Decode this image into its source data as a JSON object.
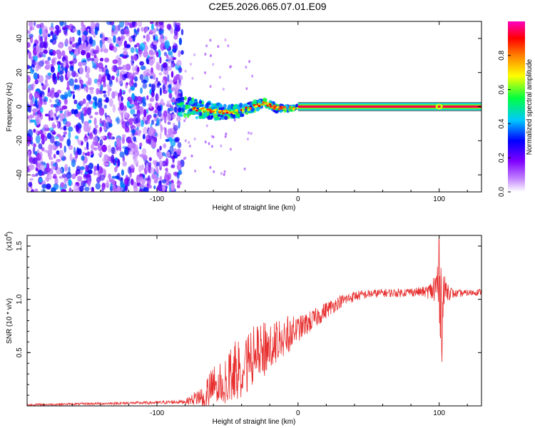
{
  "title": "C2E5.2026.065.07.01.E09",
  "chart_data": [
    {
      "type": "heatmap",
      "xlabel": "Height of straight line (km)",
      "ylabel": "Frequency (Hz)",
      "xlim": [
        -192,
        130
      ],
      "ylim": [
        -50,
        50
      ],
      "x_ticks": [
        -100,
        0,
        100
      ],
      "x_tick_labels": [
        "-100",
        "0",
        "100"
      ],
      "y_ticks": [
        -40,
        -20,
        0,
        20,
        40
      ],
      "y_tick_labels": [
        "-40",
        "-20",
        "0",
        "20",
        "40"
      ],
      "colorbar": {
        "label": "Normalized spectral amplitude",
        "range": [
          0,
          1
        ],
        "ticks": [
          0.0,
          0.2,
          0.4,
          0.6,
          0.8
        ],
        "tick_labels": [
          "0.0",
          "0.2",
          "0.4",
          "0.6",
          "0.8"
        ],
        "colormap": [
          "#ffffff",
          "#8000ff",
          "#0000ff",
          "#00c8ff",
          "#00ff40",
          "#ffff00",
          "#ff8000",
          "#ff0000",
          "#ff00c0"
        ]
      },
      "regions": [
        {
          "name": "noise",
          "x": [
            -192,
            -82
          ],
          "freq": [
            -50,
            50
          ],
          "level": 0.15
        },
        {
          "name": "transition",
          "x": [
            -82,
            0
          ],
          "freq": [
            -8,
            8
          ],
          "level": 0.35
        },
        {
          "name": "tone",
          "x": [
            0,
            130
          ],
          "freq": [
            -1.5,
            1.5
          ],
          "level": 0.95
        }
      ],
      "ridge": {
        "x": [
          -85,
          -75,
          -65,
          -55,
          -45,
          -35,
          -25,
          -20,
          -15,
          -10,
          -5,
          0,
          130
        ],
        "freq": [
          0,
          -1,
          -2,
          -3,
          -3,
          -1,
          2,
          1,
          -1,
          -1,
          -1,
          0,
          0
        ]
      },
      "spike": {
        "x": 100,
        "freq": 0
      }
    },
    {
      "type": "line",
      "xlabel": "Height of straight line (km)",
      "ylabel": "SNR (10 * v/v)",
      "y_multiplier_label": "(x10",
      "y_multiplier_exp": "4",
      "xlim": [
        -192,
        130
      ],
      "ylim": [
        0,
        1.6
      ],
      "x_ticks": [
        -100,
        0,
        100
      ],
      "x_tick_labels": [
        "-100",
        "0",
        "100"
      ],
      "y_ticks": [
        0.5,
        1.0,
        1.5
      ],
      "y_tick_labels": [
        "0.5",
        "1.0",
        "1.5"
      ],
      "color": "#e83030",
      "series_envelope": {
        "x": [
          -192,
          -150,
          -100,
          -80,
          -75,
          -65,
          -60,
          -55,
          -50,
          -40,
          -30,
          -20,
          -10,
          0,
          10,
          20,
          30,
          40,
          50,
          60,
          70,
          80,
          90,
          95,
          98,
          100,
          102,
          104,
          110,
          120,
          130
        ],
        "mean": [
          0.01,
          0.02,
          0.03,
          0.04,
          0.06,
          0.12,
          0.18,
          0.22,
          0.28,
          0.38,
          0.48,
          0.56,
          0.65,
          0.72,
          0.8,
          0.9,
          0.98,
          1.03,
          1.05,
          1.06,
          1.06,
          1.07,
          1.07,
          1.08,
          1.1,
          1.2,
          0.9,
          1.1,
          1.05,
          1.06,
          1.07
        ],
        "amp": [
          0.01,
          0.01,
          0.015,
          0.02,
          0.05,
          0.15,
          0.2,
          0.22,
          0.25,
          0.3,
          0.28,
          0.25,
          0.2,
          0.12,
          0.1,
          0.08,
          0.06,
          0.05,
          0.04,
          0.04,
          0.04,
          0.04,
          0.05,
          0.1,
          0.3,
          0.4,
          0.5,
          0.12,
          0.04,
          0.03,
          0.03
        ]
      }
    }
  ]
}
